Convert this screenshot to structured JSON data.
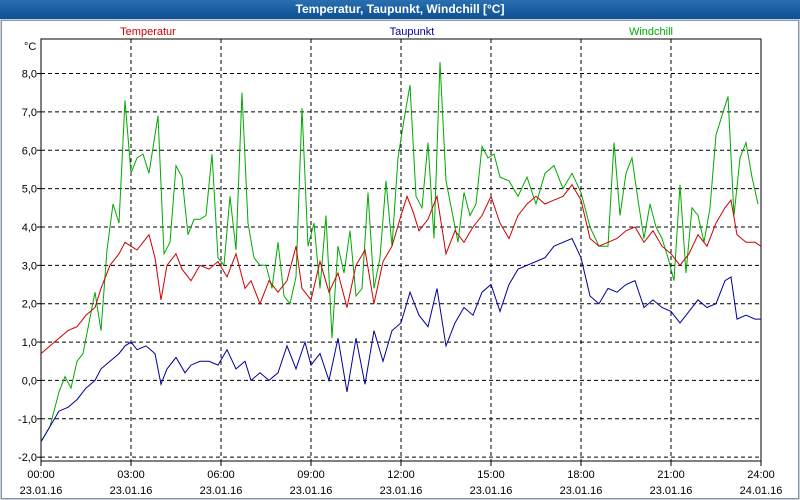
{
  "window": {
    "title": "Temperatur, Taupunkt, Windchill [°C]"
  },
  "chart_data": {
    "type": "line",
    "title": "Temperatur, Taupunkt, Windchill [°C]",
    "ylabel": "°C",
    "ylim": [
      -2.1,
      8.9
    ],
    "xlim": [
      0,
      24
    ],
    "yticks": [
      -2,
      -1,
      0,
      1,
      2,
      3,
      4,
      5,
      6,
      7,
      8
    ],
    "ytick_labels": [
      "-2,0",
      "-1,0",
      "0,0",
      "1,0",
      "2,0",
      "3,0",
      "4,0",
      "5,0",
      "6,0",
      "7,0",
      "8,0"
    ],
    "xticks": [
      0,
      3,
      6,
      9,
      12,
      15,
      18,
      21,
      24
    ],
    "xtick_labels": [
      {
        "time": "00:00",
        "date": "23.01.16"
      },
      {
        "time": "03:00",
        "date": "23.01.16"
      },
      {
        "time": "06:00",
        "date": "23.01.16"
      },
      {
        "time": "09:00",
        "date": "23.01.16"
      },
      {
        "time": "12:00",
        "date": "23.01.16"
      },
      {
        "time": "15:00",
        "date": "23.01.16"
      },
      {
        "time": "18:00",
        "date": "23.01.16"
      },
      {
        "time": "21:00",
        "date": "23.01.16"
      },
      {
        "time": "24:00",
        "date": "24.01.16"
      }
    ],
    "grid": true,
    "legend": [
      "Temperatur",
      "Taupunkt",
      "Windchill"
    ],
    "series": [
      {
        "name": "Temperatur",
        "color": "#cc0000",
        "points": [
          [
            0,
            0.7
          ],
          [
            0.3,
            0.9
          ],
          [
            0.6,
            1.1
          ],
          [
            0.9,
            1.3
          ],
          [
            1.2,
            1.4
          ],
          [
            1.5,
            1.7
          ],
          [
            1.8,
            1.9
          ],
          [
            2.0,
            2.4
          ],
          [
            2.3,
            3.0
          ],
          [
            2.6,
            3.3
          ],
          [
            2.8,
            3.6
          ],
          [
            3.0,
            3.5
          ],
          [
            3.2,
            3.4
          ],
          [
            3.4,
            3.6
          ],
          [
            3.6,
            3.8
          ],
          [
            3.8,
            3.2
          ],
          [
            4.0,
            2.1
          ],
          [
            4.2,
            3.0
          ],
          [
            4.5,
            3.3
          ],
          [
            4.7,
            2.9
          ],
          [
            5.0,
            2.6
          ],
          [
            5.3,
            3.0
          ],
          [
            5.6,
            2.9
          ],
          [
            5.9,
            3.1
          ],
          [
            6.2,
            2.7
          ],
          [
            6.5,
            3.3
          ],
          [
            6.8,
            2.4
          ],
          [
            7.0,
            2.6
          ],
          [
            7.3,
            2.0
          ],
          [
            7.6,
            2.6
          ],
          [
            7.9,
            2.3
          ],
          [
            8.2,
            2.6
          ],
          [
            8.5,
            3.5
          ],
          [
            8.7,
            2.4
          ],
          [
            9.0,
            2.1
          ],
          [
            9.3,
            3.1
          ],
          [
            9.6,
            2.3
          ],
          [
            9.9,
            2.8
          ],
          [
            10.2,
            1.9
          ],
          [
            10.5,
            3.0
          ],
          [
            10.8,
            3.4
          ],
          [
            11.1,
            2.0
          ],
          [
            11.4,
            3.1
          ],
          [
            11.7,
            3.5
          ],
          [
            12.0,
            4.3
          ],
          [
            12.2,
            4.8
          ],
          [
            12.4,
            4.4
          ],
          [
            12.6,
            3.9
          ],
          [
            12.9,
            4.2
          ],
          [
            13.2,
            4.8
          ],
          [
            13.5,
            3.3
          ],
          [
            13.8,
            3.9
          ],
          [
            14.1,
            3.6
          ],
          [
            14.4,
            4.0
          ],
          [
            14.7,
            4.3
          ],
          [
            15.0,
            4.8
          ],
          [
            15.3,
            4.1
          ],
          [
            15.6,
            3.7
          ],
          [
            15.9,
            4.3
          ],
          [
            16.2,
            4.6
          ],
          [
            16.5,
            4.8
          ],
          [
            16.8,
            4.6
          ],
          [
            17.1,
            4.7
          ],
          [
            17.4,
            4.8
          ],
          [
            17.7,
            5.1
          ],
          [
            18.0,
            4.7
          ],
          [
            18.3,
            3.7
          ],
          [
            18.6,
            3.5
          ],
          [
            18.9,
            3.6
          ],
          [
            19.2,
            3.7
          ],
          [
            19.5,
            3.9
          ],
          [
            19.8,
            4.0
          ],
          [
            20.1,
            3.6
          ],
          [
            20.4,
            3.9
          ],
          [
            20.7,
            3.5
          ],
          [
            21.0,
            3.3
          ],
          [
            21.3,
            3.0
          ],
          [
            21.6,
            3.3
          ],
          [
            21.9,
            3.8
          ],
          [
            22.2,
            3.5
          ],
          [
            22.5,
            4.1
          ],
          [
            22.8,
            4.5
          ],
          [
            23.0,
            4.7
          ],
          [
            23.2,
            3.8
          ],
          [
            23.5,
            3.6
          ],
          [
            23.8,
            3.6
          ],
          [
            24.0,
            3.5
          ]
        ]
      },
      {
        "name": "Taupunkt",
        "color": "#000099",
        "points": [
          [
            0,
            -1.6
          ],
          [
            0.3,
            -1.2
          ],
          [
            0.6,
            -0.8
          ],
          [
            0.9,
            -0.7
          ],
          [
            1.2,
            -0.5
          ],
          [
            1.5,
            -0.2
          ],
          [
            1.8,
            0.0
          ],
          [
            2.0,
            0.3
          ],
          [
            2.3,
            0.5
          ],
          [
            2.6,
            0.7
          ],
          [
            2.8,
            0.9
          ],
          [
            3.0,
            1.0
          ],
          [
            3.2,
            0.8
          ],
          [
            3.5,
            0.9
          ],
          [
            3.8,
            0.7
          ],
          [
            4.0,
            -0.1
          ],
          [
            4.2,
            0.3
          ],
          [
            4.5,
            0.6
          ],
          [
            4.8,
            0.2
          ],
          [
            5.0,
            0.4
          ],
          [
            5.3,
            0.5
          ],
          [
            5.6,
            0.5
          ],
          [
            5.9,
            0.4
          ],
          [
            6.2,
            0.8
          ],
          [
            6.5,
            0.3
          ],
          [
            6.8,
            0.5
          ],
          [
            7.0,
            0.0
          ],
          [
            7.3,
            0.2
          ],
          [
            7.6,
            0.0
          ],
          [
            7.9,
            0.2
          ],
          [
            8.2,
            0.9
          ],
          [
            8.5,
            0.3
          ],
          [
            8.8,
            1.0
          ],
          [
            9.0,
            0.4
          ],
          [
            9.3,
            0.7
          ],
          [
            9.6,
            0.0
          ],
          [
            9.9,
            1.1
          ],
          [
            10.2,
            -0.3
          ],
          [
            10.5,
            1.1
          ],
          [
            10.8,
            -0.1
          ],
          [
            11.1,
            1.3
          ],
          [
            11.4,
            0.5
          ],
          [
            11.7,
            1.3
          ],
          [
            12.0,
            1.5
          ],
          [
            12.3,
            2.3
          ],
          [
            12.6,
            1.7
          ],
          [
            12.9,
            1.4
          ],
          [
            13.2,
            2.4
          ],
          [
            13.5,
            0.9
          ],
          [
            13.8,
            1.5
          ],
          [
            14.1,
            1.9
          ],
          [
            14.4,
            1.7
          ],
          [
            14.7,
            2.3
          ],
          [
            15.0,
            2.5
          ],
          [
            15.3,
            1.8
          ],
          [
            15.6,
            2.5
          ],
          [
            15.9,
            2.9
          ],
          [
            16.2,
            3.0
          ],
          [
            16.5,
            3.1
          ],
          [
            16.8,
            3.2
          ],
          [
            17.1,
            3.5
          ],
          [
            17.4,
            3.6
          ],
          [
            17.7,
            3.7
          ],
          [
            18.0,
            3.2
          ],
          [
            18.3,
            2.2
          ],
          [
            18.6,
            2.0
          ],
          [
            18.9,
            2.4
          ],
          [
            19.2,
            2.3
          ],
          [
            19.5,
            2.5
          ],
          [
            19.8,
            2.6
          ],
          [
            20.1,
            1.9
          ],
          [
            20.4,
            2.1
          ],
          [
            20.7,
            1.9
          ],
          [
            21.0,
            1.8
          ],
          [
            21.3,
            1.5
          ],
          [
            21.6,
            1.8
          ],
          [
            21.9,
            2.1
          ],
          [
            22.2,
            1.9
          ],
          [
            22.5,
            2.0
          ],
          [
            22.8,
            2.6
          ],
          [
            23.0,
            2.7
          ],
          [
            23.2,
            1.6
          ],
          [
            23.5,
            1.7
          ],
          [
            23.8,
            1.6
          ],
          [
            24.0,
            1.6
          ]
        ]
      },
      {
        "name": "Windchill",
        "color": "#00aa00",
        "points": [
          [
            0,
            -1.6
          ],
          [
            0.3,
            -1.2
          ],
          [
            0.6,
            -0.3
          ],
          [
            0.8,
            0.1
          ],
          [
            1.0,
            -0.2
          ],
          [
            1.2,
            0.5
          ],
          [
            1.4,
            0.7
          ],
          [
            1.6,
            1.5
          ],
          [
            1.8,
            2.3
          ],
          [
            2.0,
            1.3
          ],
          [
            2.2,
            3.4
          ],
          [
            2.4,
            4.6
          ],
          [
            2.6,
            4.1
          ],
          [
            2.8,
            7.3
          ],
          [
            3.0,
            5.4
          ],
          [
            3.2,
            5.8
          ],
          [
            3.4,
            5.9
          ],
          [
            3.6,
            5.4
          ],
          [
            3.9,
            6.9
          ],
          [
            4.1,
            3.3
          ],
          [
            4.3,
            3.6
          ],
          [
            4.5,
            5.6
          ],
          [
            4.7,
            5.3
          ],
          [
            4.9,
            3.8
          ],
          [
            5.1,
            4.2
          ],
          [
            5.3,
            4.2
          ],
          [
            5.5,
            4.3
          ],
          [
            5.7,
            5.9
          ],
          [
            5.9,
            3.2
          ],
          [
            6.1,
            3.0
          ],
          [
            6.3,
            4.8
          ],
          [
            6.5,
            3.4
          ],
          [
            6.7,
            7.5
          ],
          [
            6.9,
            4.1
          ],
          [
            7.1,
            3.2
          ],
          [
            7.3,
            3.0
          ],
          [
            7.5,
            3.0
          ],
          [
            7.7,
            2.4
          ],
          [
            7.9,
            3.6
          ],
          [
            8.1,
            2.2
          ],
          [
            8.3,
            2.0
          ],
          [
            8.5,
            2.7
          ],
          [
            8.7,
            7.1
          ],
          [
            8.9,
            3.5
          ],
          [
            9.1,
            4.1
          ],
          [
            9.3,
            2.4
          ],
          [
            9.5,
            4.3
          ],
          [
            9.7,
            1.1
          ],
          [
            9.9,
            3.5
          ],
          [
            10.1,
            2.8
          ],
          [
            10.3,
            3.9
          ],
          [
            10.5,
            2.2
          ],
          [
            10.7,
            2.4
          ],
          [
            10.9,
            4.9
          ],
          [
            11.1,
            2.4
          ],
          [
            11.3,
            3.2
          ],
          [
            11.5,
            5.2
          ],
          [
            11.7,
            3.5
          ],
          [
            11.9,
            5.8
          ],
          [
            12.1,
            6.8
          ],
          [
            12.3,
            7.7
          ],
          [
            12.5,
            4.8
          ],
          [
            12.7,
            4.5
          ],
          [
            12.9,
            6.2
          ],
          [
            13.1,
            3.7
          ],
          [
            13.3,
            8.3
          ],
          [
            13.5,
            5.2
          ],
          [
            13.7,
            4.4
          ],
          [
            13.9,
            3.6
          ],
          [
            14.1,
            4.9
          ],
          [
            14.3,
            4.3
          ],
          [
            14.5,
            4.6
          ],
          [
            14.7,
            6.1
          ],
          [
            14.9,
            5.8
          ],
          [
            15.1,
            5.9
          ],
          [
            15.3,
            5.3
          ],
          [
            15.6,
            5.2
          ],
          [
            15.9,
            4.8
          ],
          [
            16.2,
            5.3
          ],
          [
            16.5,
            4.6
          ],
          [
            16.8,
            5.4
          ],
          [
            17.1,
            5.6
          ],
          [
            17.4,
            5.0
          ],
          [
            17.7,
            5.4
          ],
          [
            18.0,
            4.9
          ],
          [
            18.3,
            4.0
          ],
          [
            18.6,
            3.5
          ],
          [
            18.9,
            3.5
          ],
          [
            19.1,
            6.2
          ],
          [
            19.3,
            4.3
          ],
          [
            19.5,
            5.4
          ],
          [
            19.7,
            5.8
          ],
          [
            19.9,
            4.7
          ],
          [
            20.1,
            3.7
          ],
          [
            20.3,
            4.6
          ],
          [
            20.5,
            4.0
          ],
          [
            20.7,
            3.7
          ],
          [
            20.9,
            3.2
          ],
          [
            21.1,
            2.6
          ],
          [
            21.3,
            5.1
          ],
          [
            21.5,
            2.8
          ],
          [
            21.7,
            4.5
          ],
          [
            21.9,
            4.3
          ],
          [
            22.1,
            3.6
          ],
          [
            22.3,
            4.5
          ],
          [
            22.5,
            6.4
          ],
          [
            22.7,
            6.9
          ],
          [
            22.9,
            7.4
          ],
          [
            23.1,
            4.3
          ],
          [
            23.3,
            5.8
          ],
          [
            23.5,
            6.2
          ],
          [
            23.7,
            5.3
          ],
          [
            23.9,
            4.6
          ]
        ]
      }
    ]
  }
}
